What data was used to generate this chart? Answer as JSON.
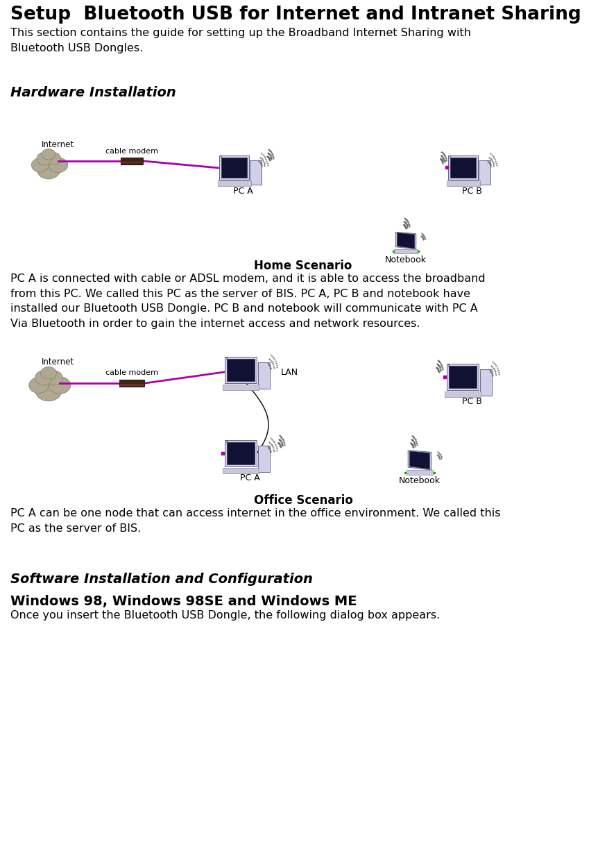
{
  "title": "Setup  Bluetooth USB for Internet and Intranet Sharing",
  "subtitle": "This section contains the guide for setting up the Broadband Internet Sharing with\nBluetooth USB Dongles.",
  "section1_title": "Hardware Installation",
  "diagram1_caption": "Home Scenario",
  "diagram1_text": "PC A is connected with cable or ADSL modem, and it is able to access the broadband\nfrom this PC. We called this PC as the server of BIS. PC A, PC B and notebook have\ninstalled our Bluetooth USB Dongle. PC B and notebook will communicate with PC A\nVia Bluetooth in order to gain the internet access and network resources.",
  "diagram2_caption": "Office Scenario",
  "diagram2_text": "PC A can be one node that can access internet in the office environment. We called this\nPC as the server of BIS.",
  "section2_title": "Software Installation and Configuration",
  "subsection1_title": "Windows 98, Windows 98SE and Windows ME",
  "subsection1_text": "Once you insert the Bluetooth USB Dongle, the following dialog box appears.",
  "bg_color": "#ffffff",
  "text_color": "#000000",
  "title_fontsize": 19,
  "section_fontsize": 14,
  "body_fontsize": 11.5,
  "caption_fontsize": 12,
  "magenta": "#aa00aa",
  "cloud_color": "#b0a890",
  "modem_color": "#442211",
  "pc_color": "#d0d0e8",
  "pc_screen_color": "#111133",
  "notebook_color": "#c8c8e0"
}
